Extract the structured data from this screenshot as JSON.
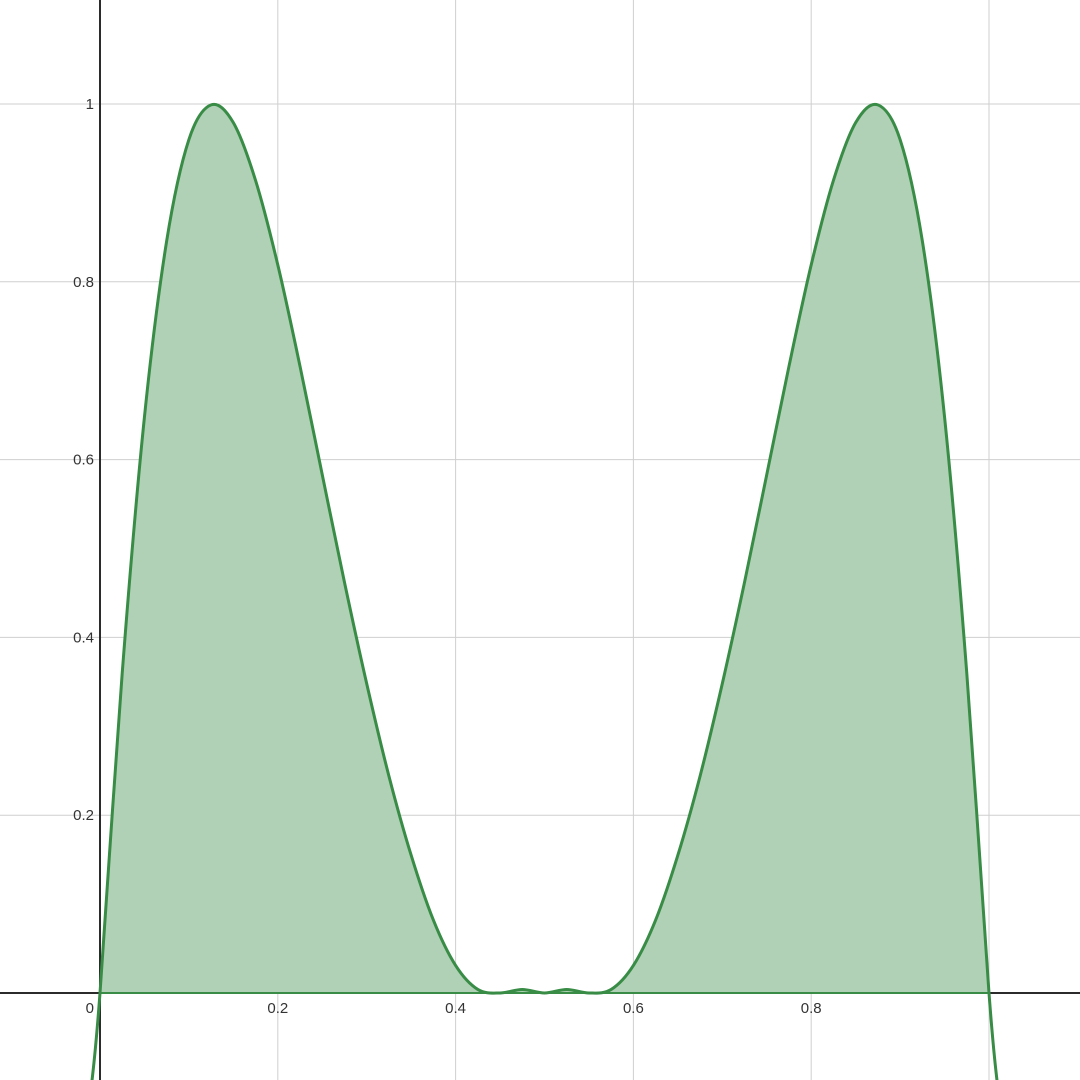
{
  "chart_data": {
    "type": "area",
    "title": "",
    "xlabel": "",
    "ylabel": "",
    "xlim": [
      -0.11,
      1.1
    ],
    "ylim": [
      -0.1,
      1.12
    ],
    "grid": true,
    "x_ticks": [
      {
        "value": 0.2,
        "label": "0.2"
      },
      {
        "value": 0.4,
        "label": "0.4"
      },
      {
        "value": 0.6,
        "label": "0.6"
      },
      {
        "value": 0.8,
        "label": "0.8"
      }
    ],
    "y_ticks": [
      {
        "value": 0.2,
        "label": "0.2"
      },
      {
        "value": 0.4,
        "label": "0.4"
      },
      {
        "value": 0.6,
        "label": "0.6"
      },
      {
        "value": 0.8,
        "label": "0.8"
      },
      {
        "value": 1,
        "label": "1"
      }
    ],
    "origin_label": "0",
    "x_grid_values": [
      0.2,
      0.4,
      0.6,
      0.8,
      1.0
    ],
    "y_grid_values": [
      0.2,
      0.4,
      0.6,
      0.8,
      1.0
    ],
    "curve": {
      "x": [
        -0.01,
        0.0,
        0.025,
        0.05,
        0.075,
        0.1,
        0.125,
        0.15,
        0.175,
        0.2,
        0.225,
        0.25,
        0.275,
        0.3,
        0.325,
        0.35,
        0.375,
        0.4,
        0.425,
        0.45,
        0.475,
        0.5,
        0.525,
        0.55,
        0.575,
        0.6,
        0.625,
        0.65,
        0.675,
        0.7,
        0.725,
        0.75,
        0.775,
        0.8,
        0.825,
        0.85,
        0.875,
        0.9,
        0.925,
        0.95,
        0.975,
        1.0,
        1.01
      ],
      "y": [
        -0.108,
        0.0,
        0.36,
        0.648,
        0.846,
        0.96,
        0.999,
        0.979,
        0.914,
        0.819,
        0.705,
        0.583,
        0.462,
        0.348,
        0.244,
        0.155,
        0.082,
        0.031,
        0.004,
        0.0,
        0.004,
        0.0,
        0.004,
        0.0,
        0.004,
        0.031,
        0.082,
        0.155,
        0.244,
        0.348,
        0.462,
        0.583,
        0.705,
        0.819,
        0.914,
        0.979,
        0.999,
        0.96,
        0.846,
        0.648,
        0.36,
        0.0,
        -0.108
      ]
    },
    "fill_range": [
      0,
      1
    ],
    "colors": {
      "curve": "#388c46",
      "fill": "#b0d1b5",
      "grid": "#cfcfcf",
      "axis": "#2b2b2b"
    }
  }
}
